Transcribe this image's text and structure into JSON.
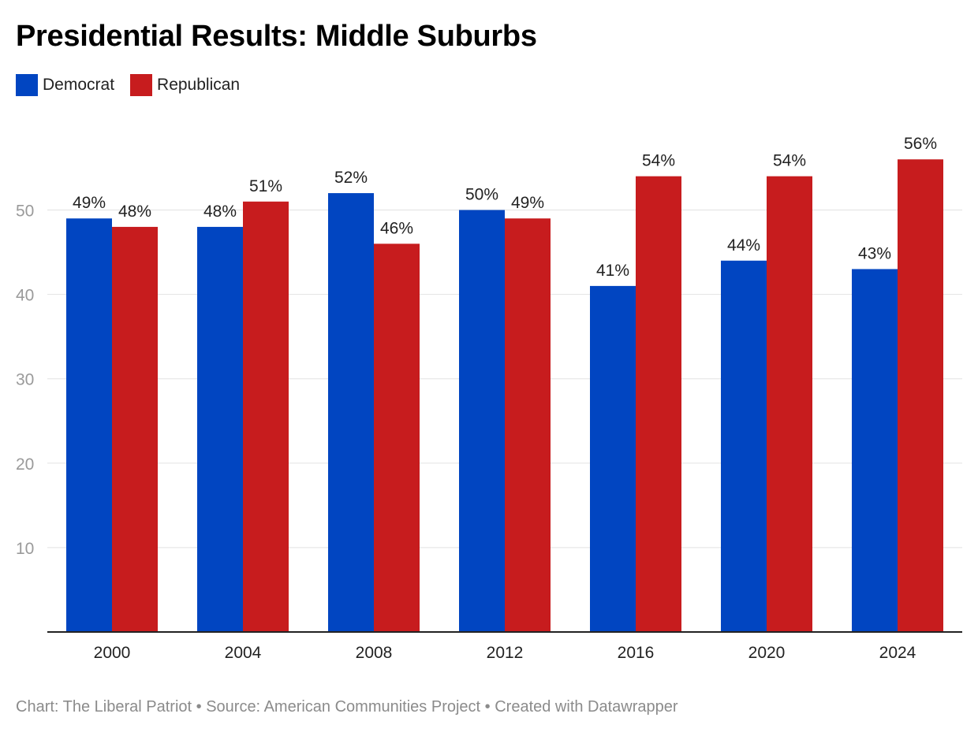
{
  "title": "Presidential Results: Middle Suburbs",
  "legend": [
    {
      "label": "Democrat",
      "color": "#0145c1"
    },
    {
      "label": "Republican",
      "color": "#c71c1e"
    }
  ],
  "footer": {
    "text": "Chart: The Liberal Patriot • Source: American Communities Project • Created with Datawrapper"
  },
  "chart_data": {
    "type": "bar",
    "title": "Presidential Results: Middle Suburbs",
    "xlabel": "",
    "ylabel": "",
    "categories": [
      "2000",
      "2004",
      "2008",
      "2012",
      "2016",
      "2020",
      "2024"
    ],
    "series": [
      {
        "name": "Democrat",
        "color": "#0145c1",
        "values": [
          49,
          48,
          52,
          50,
          41,
          44,
          43
        ],
        "labels": [
          "49%",
          "48%",
          "52%",
          "50%",
          "41%",
          "44%",
          "43%"
        ]
      },
      {
        "name": "Republican",
        "color": "#c71c1e",
        "values": [
          48,
          51,
          46,
          49,
          54,
          54,
          56
        ],
        "labels": [
          "48%",
          "51%",
          "46%",
          "49%",
          "54%",
          "54%",
          "56%"
        ]
      }
    ],
    "yticks": [
      10,
      20,
      30,
      40,
      50
    ],
    "ylim": [
      0,
      56
    ],
    "grid": true,
    "legend_position": "top-left"
  }
}
